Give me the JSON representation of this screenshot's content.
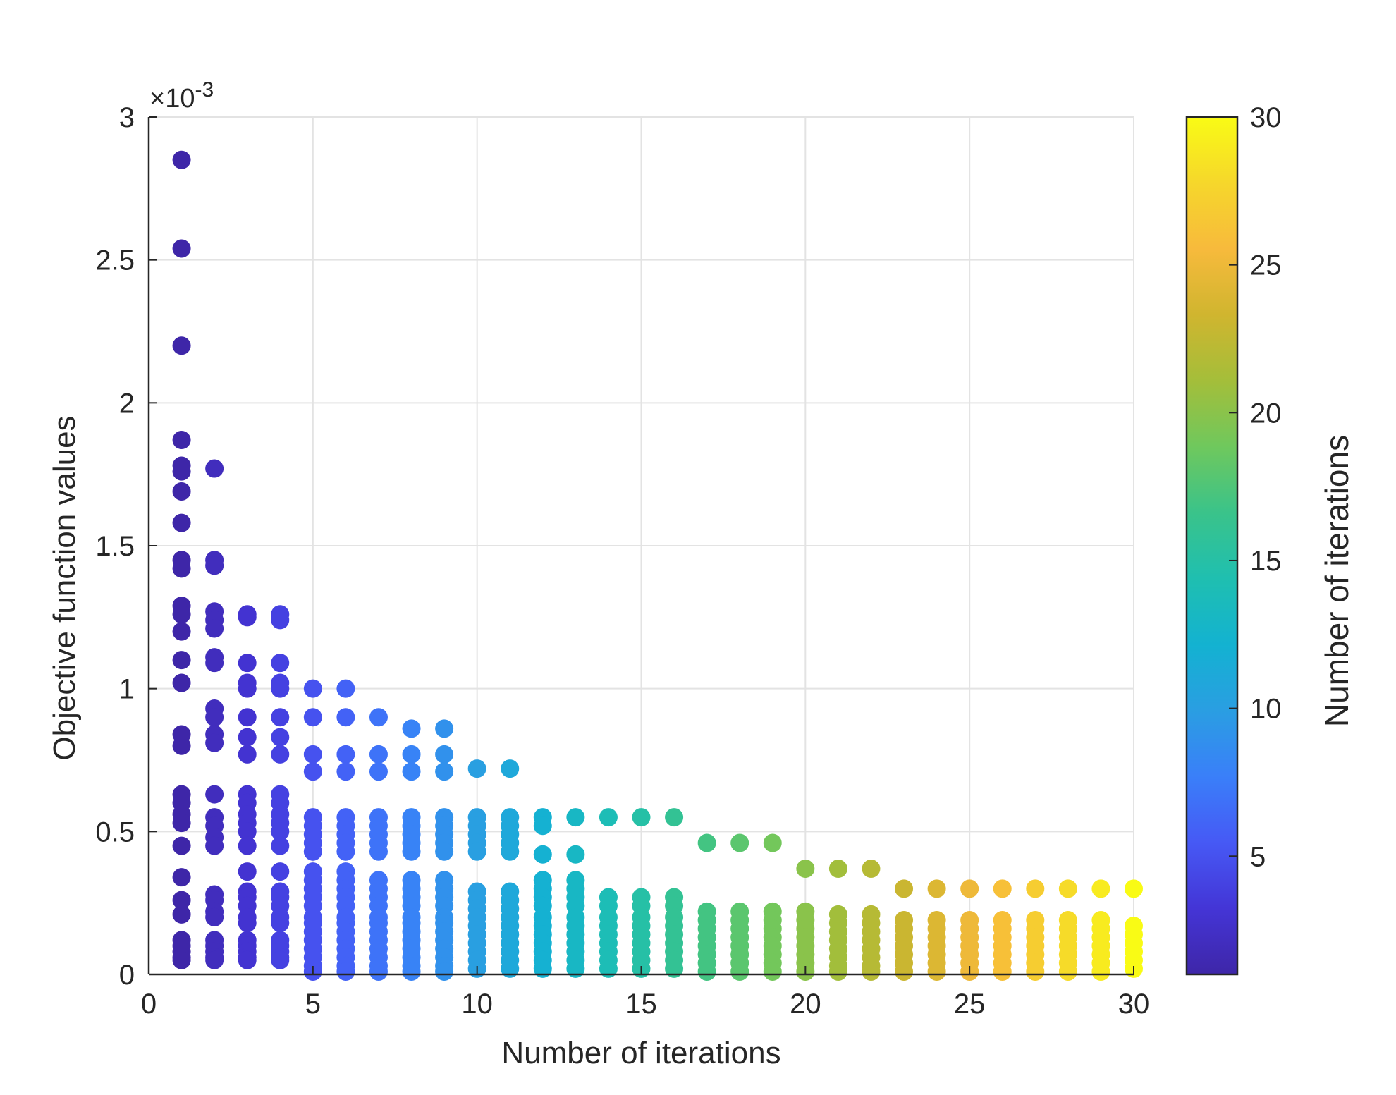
{
  "chart_data": {
    "type": "scatter",
    "title": "",
    "xlabel": "Number of iterations",
    "ylabel": "Objective function values",
    "exponent_label": "×10",
    "exponent_power": "-3",
    "xlim": [
      0,
      30
    ],
    "ylim": [
      0,
      3
    ],
    "xticks": [
      "0",
      "5",
      "10",
      "15",
      "20",
      "25",
      "30"
    ],
    "yticks": [
      "0",
      "0.5",
      "1",
      "1.5",
      "2",
      "2.5",
      "3"
    ],
    "grid": true,
    "colorbar": {
      "label": "Number of iterations",
      "range": [
        1,
        30
      ],
      "ticks": [
        "5",
        "10",
        "15",
        "20",
        "25",
        "30"
      ],
      "colormap": [
        "#3e26a8",
        "#4435d6",
        "#4659f5",
        "#3a7ff9",
        "#2a9ee2",
        "#13b2d1",
        "#1fbfb0",
        "#3ac38a",
        "#6fc85d",
        "#a4be3a",
        "#d0b52f",
        "#f7ba3c",
        "#f6d72b",
        "#f9fb15"
      ]
    },
    "series": [
      {
        "x": 1,
        "values": [
          2.85,
          2.54,
          2.2,
          1.87,
          1.78,
          1.76,
          1.69,
          1.58,
          1.45,
          1.42,
          1.29,
          1.26,
          1.2,
          1.1,
          1.02,
          0.84,
          0.8,
          0.63,
          0.6,
          0.56,
          0.53,
          0.45,
          0.34,
          0.26,
          0.21,
          0.12,
          0.1,
          0.08,
          0.06,
          0.05
        ]
      },
      {
        "x": 2,
        "values": [
          1.77,
          1.45,
          1.43,
          1.27,
          1.24,
          1.21,
          1.11,
          1.09,
          0.93,
          0.9,
          0.84,
          0.81,
          0.63,
          0.55,
          0.52,
          0.48,
          0.45,
          0.28,
          0.26,
          0.22,
          0.2,
          0.12,
          0.1,
          0.08,
          0.06,
          0.05
        ]
      },
      {
        "x": 3,
        "values": [
          1.26,
          1.25,
          1.09,
          1.02,
          1.0,
          0.9,
          0.83,
          0.77,
          0.63,
          0.6,
          0.56,
          0.53,
          0.5,
          0.45,
          0.36,
          0.29,
          0.27,
          0.24,
          0.2,
          0.18,
          0.12,
          0.1,
          0.08,
          0.06,
          0.05
        ]
      },
      {
        "x": 4,
        "values": [
          1.26,
          1.24,
          1.09,
          1.02,
          1.0,
          0.9,
          0.83,
          0.77,
          0.63,
          0.6,
          0.56,
          0.53,
          0.5,
          0.45,
          0.36,
          0.29,
          0.27,
          0.24,
          0.2,
          0.18,
          0.12,
          0.1,
          0.08,
          0.06,
          0.05
        ]
      },
      {
        "x": 5,
        "values": [
          1.0,
          0.9,
          0.77,
          0.71,
          0.55,
          0.52,
          0.49,
          0.46,
          0.43,
          0.36,
          0.33,
          0.3,
          0.27,
          0.24,
          0.2,
          0.18,
          0.15,
          0.12,
          0.09,
          0.06,
          0.03,
          0.01
        ]
      },
      {
        "x": 6,
        "values": [
          1.0,
          0.9,
          0.77,
          0.71,
          0.55,
          0.52,
          0.49,
          0.46,
          0.43,
          0.36,
          0.33,
          0.3,
          0.27,
          0.24,
          0.2,
          0.18,
          0.15,
          0.12,
          0.09,
          0.06,
          0.03,
          0.01
        ]
      },
      {
        "x": 7,
        "values": [
          0.9,
          0.77,
          0.71,
          0.55,
          0.52,
          0.49,
          0.46,
          0.43,
          0.33,
          0.3,
          0.27,
          0.24,
          0.2,
          0.18,
          0.15,
          0.12,
          0.09,
          0.06,
          0.03,
          0.01
        ]
      },
      {
        "x": 8,
        "values": [
          0.86,
          0.77,
          0.71,
          0.55,
          0.52,
          0.49,
          0.46,
          0.43,
          0.33,
          0.3,
          0.27,
          0.24,
          0.2,
          0.18,
          0.15,
          0.12,
          0.09,
          0.06,
          0.03,
          0.01
        ]
      },
      {
        "x": 9,
        "values": [
          0.86,
          0.77,
          0.71,
          0.55,
          0.52,
          0.49,
          0.46,
          0.43,
          0.33,
          0.3,
          0.27,
          0.24,
          0.2,
          0.18,
          0.15,
          0.12,
          0.09,
          0.06,
          0.03,
          0.01
        ]
      },
      {
        "x": 10,
        "values": [
          0.72,
          0.55,
          0.52,
          0.49,
          0.46,
          0.43,
          0.29,
          0.26,
          0.23,
          0.2,
          0.17,
          0.14,
          0.11,
          0.08,
          0.05,
          0.02
        ]
      },
      {
        "x": 11,
        "values": [
          0.72,
          0.55,
          0.52,
          0.49,
          0.46,
          0.43,
          0.29,
          0.26,
          0.23,
          0.2,
          0.17,
          0.14,
          0.11,
          0.08,
          0.05,
          0.02
        ]
      },
      {
        "x": 12,
        "values": [
          0.55,
          0.52,
          0.42,
          0.33,
          0.3,
          0.27,
          0.24,
          0.2,
          0.17,
          0.14,
          0.11,
          0.08,
          0.05,
          0.02
        ]
      },
      {
        "x": 13,
        "values": [
          0.55,
          0.42,
          0.33,
          0.3,
          0.27,
          0.24,
          0.2,
          0.17,
          0.14,
          0.11,
          0.08,
          0.05,
          0.02
        ]
      },
      {
        "x": 14,
        "values": [
          0.55,
          0.27,
          0.24,
          0.2,
          0.17,
          0.14,
          0.11,
          0.08,
          0.05,
          0.02
        ]
      },
      {
        "x": 15,
        "values": [
          0.55,
          0.27,
          0.24,
          0.2,
          0.17,
          0.14,
          0.11,
          0.08,
          0.05,
          0.02
        ]
      },
      {
        "x": 16,
        "values": [
          0.55,
          0.27,
          0.24,
          0.2,
          0.17,
          0.14,
          0.11,
          0.08,
          0.05,
          0.02
        ]
      },
      {
        "x": 17,
        "values": [
          0.46,
          0.22,
          0.19,
          0.16,
          0.13,
          0.1,
          0.07,
          0.04,
          0.01
        ]
      },
      {
        "x": 18,
        "values": [
          0.46,
          0.22,
          0.19,
          0.16,
          0.13,
          0.1,
          0.07,
          0.04,
          0.01
        ]
      },
      {
        "x": 19,
        "values": [
          0.46,
          0.22,
          0.19,
          0.16,
          0.13,
          0.1,
          0.07,
          0.04,
          0.01
        ]
      },
      {
        "x": 20,
        "values": [
          0.37,
          0.22,
          0.19,
          0.16,
          0.13,
          0.1,
          0.07,
          0.04,
          0.01
        ]
      },
      {
        "x": 21,
        "values": [
          0.37,
          0.21,
          0.18,
          0.15,
          0.12,
          0.09,
          0.06,
          0.03,
          0.01
        ]
      },
      {
        "x": 22,
        "values": [
          0.37,
          0.21,
          0.18,
          0.15,
          0.12,
          0.09,
          0.06,
          0.03,
          0.01
        ]
      },
      {
        "x": 23,
        "values": [
          0.3,
          0.19,
          0.16,
          0.13,
          0.1,
          0.07,
          0.04,
          0.01
        ]
      },
      {
        "x": 24,
        "values": [
          0.3,
          0.19,
          0.16,
          0.13,
          0.1,
          0.07,
          0.04,
          0.01
        ]
      },
      {
        "x": 25,
        "values": [
          0.3,
          0.19,
          0.16,
          0.13,
          0.1,
          0.07,
          0.04,
          0.01
        ]
      },
      {
        "x": 26,
        "values": [
          0.3,
          0.19,
          0.16,
          0.13,
          0.1,
          0.07,
          0.04,
          0.01
        ]
      },
      {
        "x": 27,
        "values": [
          0.3,
          0.19,
          0.16,
          0.13,
          0.1,
          0.07,
          0.04,
          0.01
        ]
      },
      {
        "x": 28,
        "values": [
          0.3,
          0.19,
          0.16,
          0.13,
          0.1,
          0.07,
          0.04,
          0.01
        ]
      },
      {
        "x": 29,
        "values": [
          0.3,
          0.19,
          0.16,
          0.13,
          0.1,
          0.07,
          0.04,
          0.01
        ]
      },
      {
        "x": 30,
        "values": [
          0.3,
          0.17,
          0.14,
          0.11,
          0.08,
          0.05,
          0.02
        ]
      }
    ]
  }
}
